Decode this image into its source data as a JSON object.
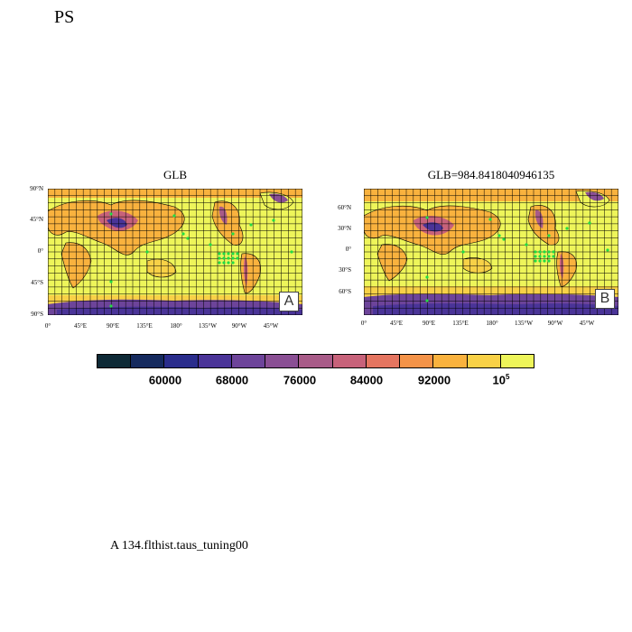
{
  "page_title": "PS",
  "panels": [
    {
      "id": "A",
      "title": "GLB",
      "badge": "A",
      "lat_labels": [
        "90°N",
        "45°N",
        "0°",
        "45°S",
        "90°S"
      ],
      "lon_labels": [
        "0°",
        "45°E",
        "90°E",
        "135°E",
        "180°",
        "135°W",
        "90°W",
        "45°W"
      ]
    },
    {
      "id": "B",
      "title": "GLB=984.8418040946135",
      "badge": "B",
      "lat_labels": [
        "60°N",
        "30°N",
        "0°",
        "30°S",
        "60°S"
      ],
      "lon_labels": [
        "0°",
        "45°E",
        "90°E",
        "135°E",
        "180°",
        "135°W",
        "90°W",
        "45°W"
      ]
    }
  ],
  "colorbar": {
    "colors": [
      "#0e2a36",
      "#152a5e",
      "#2a2d8c",
      "#4a3498",
      "#6d449a",
      "#8a4f94",
      "#a85b88",
      "#c7627a",
      "#e57560",
      "#f49348",
      "#f9b23e",
      "#f8d147",
      "#eef55a"
    ],
    "labels": [
      {
        "base": "60000",
        "sup": ""
      },
      {
        "base": "68000",
        "sup": ""
      },
      {
        "base": "76000",
        "sup": ""
      },
      {
        "base": "84000",
        "sup": ""
      },
      {
        "base": "92000",
        "sup": ""
      },
      {
        "base": "10",
        "sup": "5"
      }
    ]
  },
  "footer": "A  134.flthist.taus_tuning00"
}
